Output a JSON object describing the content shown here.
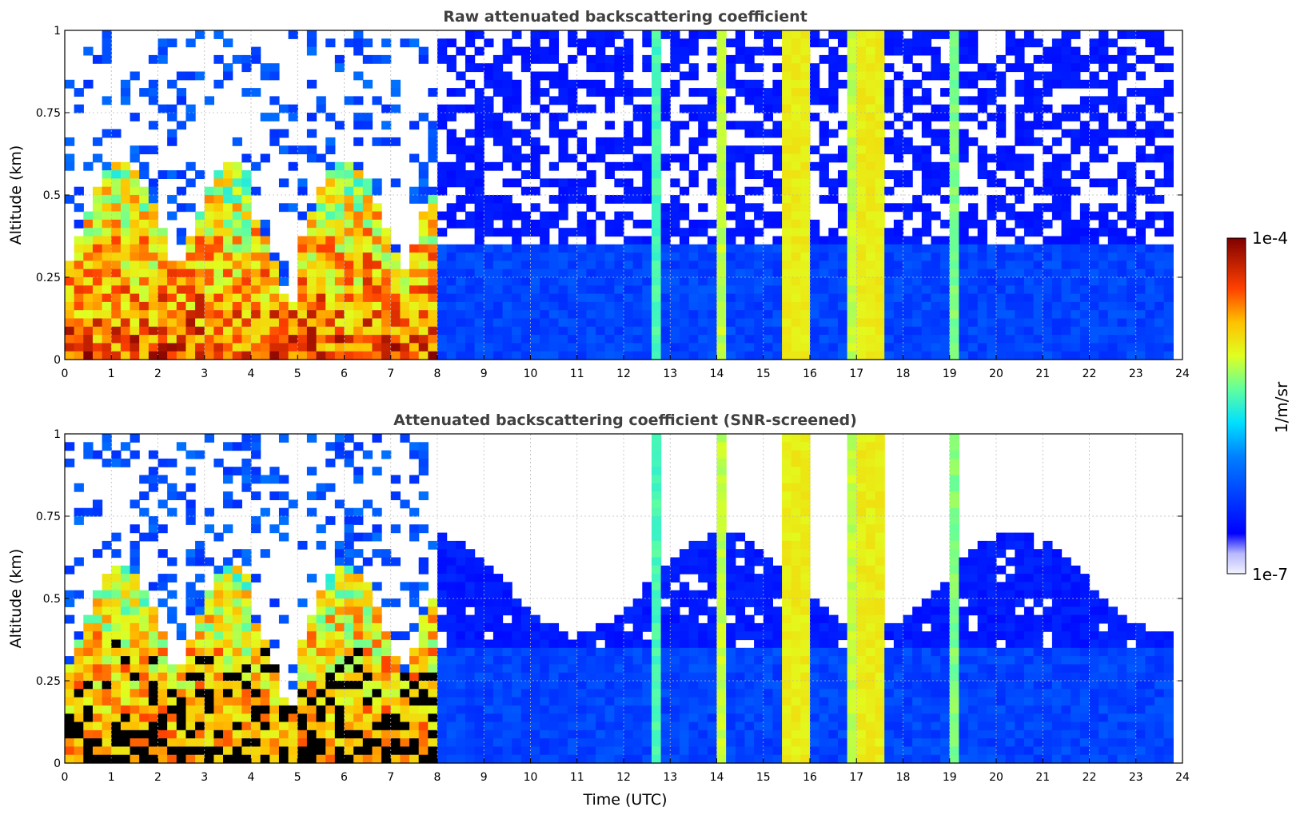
{
  "chart_data": [
    {
      "type": "heatmap",
      "title": "Raw attenuated backscattering coefficient",
      "xlabel": "",
      "ylabel": "Altitude (km)",
      "xlim": [
        0,
        24
      ],
      "ylim": [
        0,
        1
      ],
      "x_ticks": [
        "0",
        "1",
        "2",
        "3",
        "4",
        "5",
        "6",
        "7",
        "8",
        "9",
        "10",
        "11",
        "12",
        "13",
        "14",
        "15",
        "16",
        "17",
        "18",
        "19",
        "20",
        "21",
        "22",
        "23",
        "24"
      ],
      "y_ticks": [
        "0",
        "0.25",
        "0.5",
        "0.75",
        "1"
      ],
      "grid": true,
      "screened": false
    },
    {
      "type": "heatmap",
      "title": "Attenuated backscattering coefficient (SNR-screened)",
      "xlabel": "Time (UTC)",
      "ylabel": "Altitude (km)",
      "xlim": [
        0,
        24
      ],
      "ylim": [
        0,
        1
      ],
      "x_ticks": [
        "0",
        "1",
        "2",
        "3",
        "4",
        "5",
        "6",
        "7",
        "8",
        "9",
        "10",
        "11",
        "12",
        "13",
        "14",
        "15",
        "16",
        "17",
        "18",
        "19",
        "20",
        "21",
        "22",
        "23",
        "24"
      ],
      "y_ticks": [
        "0",
        "0.25",
        "0.5",
        "0.75",
        "1"
      ],
      "grid": true,
      "screened": true
    }
  ],
  "colorbar": {
    "label": "1/m/sr",
    "max_label": "1e-4",
    "min_label": "1e-7",
    "colormap": "jet"
  }
}
